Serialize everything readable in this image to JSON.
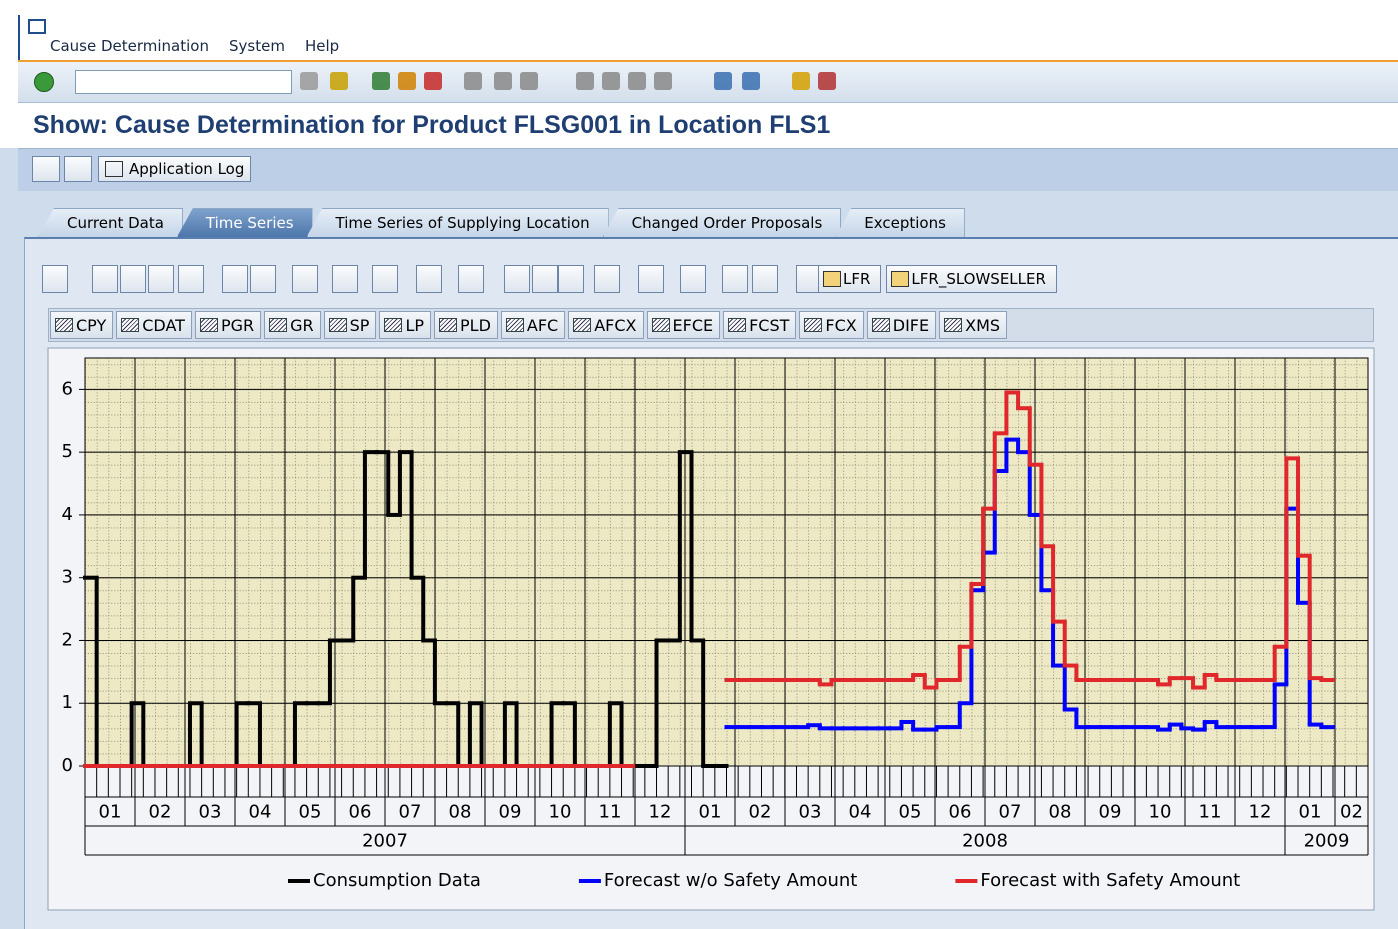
{
  "menu": [
    "Cause Determination",
    "System",
    "Help"
  ],
  "title": "Show: Cause Determination for Product FLSG001 in Location FLS1",
  "app_toolbar": {
    "button": "Application Log"
  },
  "tabs": [
    "Current Data",
    "Time Series",
    "Time Series of Supplying Location",
    "Changed Order Proposals",
    "Exceptions"
  ],
  "active_tab": 1,
  "chart_toolbar": [
    "LFR",
    "LFR_SLOWSELLER"
  ],
  "key_figures": [
    "CPY",
    "CDAT",
    "PGR",
    "GR",
    "SP",
    "LP",
    "PLD",
    "AFC",
    "AFCX",
    "EFCE",
    "FCST",
    "FCX",
    "DIFE",
    "XMS"
  ],
  "chart_data": {
    "type": "step",
    "months": [
      "01",
      "02",
      "03",
      "04",
      "05",
      "06",
      "07",
      "08",
      "09",
      "10",
      "11",
      "12",
      "01",
      "02",
      "03",
      "04",
      "05",
      "06",
      "07",
      "08",
      "09",
      "10",
      "11",
      "12",
      "01",
      "02"
    ],
    "years": [
      "2007",
      "2008",
      "2009"
    ],
    "ylim": [
      0,
      6.5
    ],
    "yticks": [
      0,
      1,
      2,
      3,
      4,
      5,
      6
    ],
    "grid": true,
    "legend": "bottom",
    "series": [
      {
        "name": "Consumption Data",
        "color": "#000000",
        "values": [
          3,
          0,
          0,
          0,
          1,
          0,
          0,
          0,
          0,
          1,
          0,
          0,
          0,
          1,
          1,
          0,
          0,
          0,
          1,
          1,
          1,
          2,
          2,
          3,
          5,
          5,
          4,
          5,
          3,
          2,
          1,
          1,
          0,
          1,
          0,
          0,
          1,
          0,
          0,
          0,
          1,
          1,
          0,
          0,
          0,
          1,
          0,
          0,
          0,
          2,
          2,
          5,
          2,
          0,
          0,
          null,
          null,
          null,
          null,
          null,
          null,
          null,
          null,
          null,
          null,
          null,
          null,
          null,
          null,
          null,
          null,
          null,
          null,
          null,
          null,
          null,
          null,
          null,
          null,
          null,
          null,
          null,
          null,
          null,
          null,
          null,
          null,
          null,
          null,
          null,
          null,
          null,
          null,
          null,
          null,
          null,
          null,
          null,
          null,
          null,
          null,
          null,
          null,
          null,
          null,
          null,
          null,
          null,
          null,
          null
        ]
      },
      {
        "name": "Forecast w/o Safety Amount",
        "color": "#0000ff",
        "values": [
          null,
          null,
          null,
          null,
          null,
          null,
          null,
          null,
          null,
          null,
          null,
          null,
          null,
          null,
          null,
          null,
          null,
          null,
          null,
          null,
          null,
          null,
          null,
          null,
          null,
          null,
          null,
          null,
          null,
          null,
          null,
          null,
          null,
          null,
          null,
          null,
          null,
          null,
          null,
          null,
          null,
          null,
          null,
          null,
          null,
          null,
          null,
          null,
          null,
          null,
          null,
          null,
          null,
          null,
          null,
          0.62,
          0.62,
          0.62,
          0.62,
          0.62,
          0.62,
          0.62,
          0.65,
          0.6,
          0.6,
          0.6,
          0.6,
          0.6,
          0.6,
          0.6,
          0.7,
          0.58,
          0.58,
          0.62,
          0.62,
          1,
          2.8,
          3.4,
          4.7,
          5.2,
          5,
          4,
          2.8,
          1.6,
          0.9,
          0.62,
          0.62,
          0.62,
          0.62,
          0.62,
          0.62,
          0.62,
          0.58,
          0.66,
          0.6,
          0.58,
          0.7,
          0.62,
          0.62,
          0.62,
          0.62,
          0.62,
          1.3,
          4.1,
          2.6,
          0.66,
          0.62,
          null,
          null,
          null
        ]
      },
      {
        "name": "Forecast with Safety Amount",
        "color": "#e0282c",
        "values": [
          0,
          0,
          0,
          0,
          0,
          0,
          0,
          0,
          0,
          0,
          0,
          0,
          0,
          0,
          0,
          0,
          0,
          0,
          0,
          0,
          0,
          0,
          0,
          0,
          0,
          0,
          0,
          0,
          0,
          0,
          0,
          0,
          0,
          0,
          0,
          0,
          0,
          0,
          0,
          0,
          0,
          0,
          0,
          0,
          0,
          0,
          0,
          null,
          null,
          null,
          null,
          null,
          null,
          null,
          null,
          1.37,
          1.37,
          1.37,
          1.37,
          1.37,
          1.37,
          1.37,
          1.37,
          1.3,
          1.37,
          1.37,
          1.37,
          1.37,
          1.37,
          1.37,
          1.37,
          1.45,
          1.25,
          1.37,
          1.37,
          1.9,
          2.9,
          4.1,
          5.3,
          5.95,
          5.7,
          4.8,
          3.5,
          2.3,
          1.6,
          1.37,
          1.37,
          1.37,
          1.37,
          1.37,
          1.37,
          1.37,
          1.3,
          1.4,
          1.4,
          1.25,
          1.45,
          1.37,
          1.37,
          1.37,
          1.37,
          1.37,
          1.9,
          4.9,
          3.35,
          1.4,
          1.37,
          null,
          null,
          null
        ]
      }
    ]
  }
}
